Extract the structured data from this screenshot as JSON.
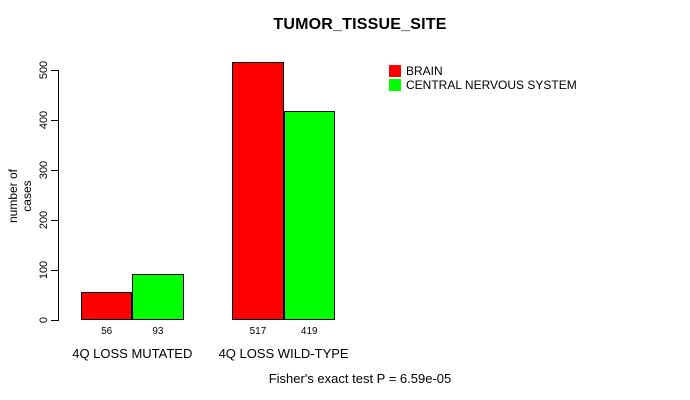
{
  "chart_data": {
    "type": "bar",
    "title": "TUMOR_TISSUE_SITE",
    "xlabel": "",
    "ylabel": "number of cases",
    "categories": [
      "4Q LOSS MUTATED",
      "4Q LOSS WILD-TYPE"
    ],
    "series": [
      {
        "name": "BRAIN",
        "color": "#ff0000",
        "values": [
          56,
          517
        ]
      },
      {
        "name": "CENTRAL NERVOUS SYSTEM",
        "color": "#00ff00",
        "values": [
          93,
          419
        ]
      }
    ],
    "yticks": [
      0,
      100,
      200,
      300,
      400,
      500
    ],
    "ylim": [
      0,
      500
    ],
    "bar_value_labels_shown": true,
    "grid": false,
    "legend_position": "top-right",
    "bar_border_color": "#000000",
    "axis_color": "#000000"
  },
  "annotations": {
    "fisher_caption": "Fisher's exact test P = 6.59e-05"
  },
  "colors": {
    "background": "#ffffff",
    "text": "#000000"
  }
}
